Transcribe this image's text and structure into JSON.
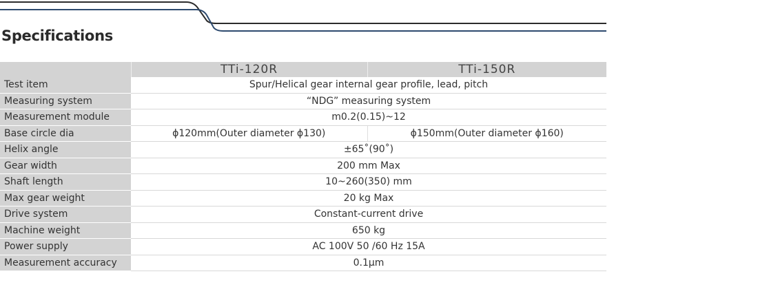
{
  "title": "Specifications",
  "colors": {
    "line_dark": "#2b2b2b",
    "line_blue": "#2d4a6e",
    "header_bg": "#d3d3d3"
  },
  "models": [
    "TTi-120R",
    "TTi-150R"
  ],
  "rows": [
    {
      "label": "Test item",
      "values": [
        "Spur/Helical gear internal gear profile, lead, pitch"
      ]
    },
    {
      "label": "Measuring system",
      "values": [
        "“NDG” measuring system"
      ]
    },
    {
      "label": "Measurement module",
      "values": [
        "m0.2(0.15)~12"
      ]
    },
    {
      "label": "Base circle dia",
      "values": [
        "ϕ120mm(Outer diameter ϕ130)",
        "ϕ150mm(Outer diameter ϕ160)"
      ]
    },
    {
      "label": "Helix angle",
      "values": [
        "±65˚(90˚)"
      ]
    },
    {
      "label": "Gear width",
      "values": [
        "200 mm Max"
      ]
    },
    {
      "label": "Shaft length",
      "values": [
        "10~260(350) mm"
      ]
    },
    {
      "label": "Max gear weight",
      "values": [
        "20 kg Max"
      ]
    },
    {
      "label": "Drive system",
      "values": [
        "Constant-current drive"
      ]
    },
    {
      "label": "Machine weight",
      "values": [
        "650 kg"
      ]
    },
    {
      "label": "Power supply",
      "values": [
        "AC 100V 50 /60 Hz 15A"
      ]
    },
    {
      "label": "Measurement accuracy",
      "values": [
        "0.1μm"
      ]
    }
  ]
}
